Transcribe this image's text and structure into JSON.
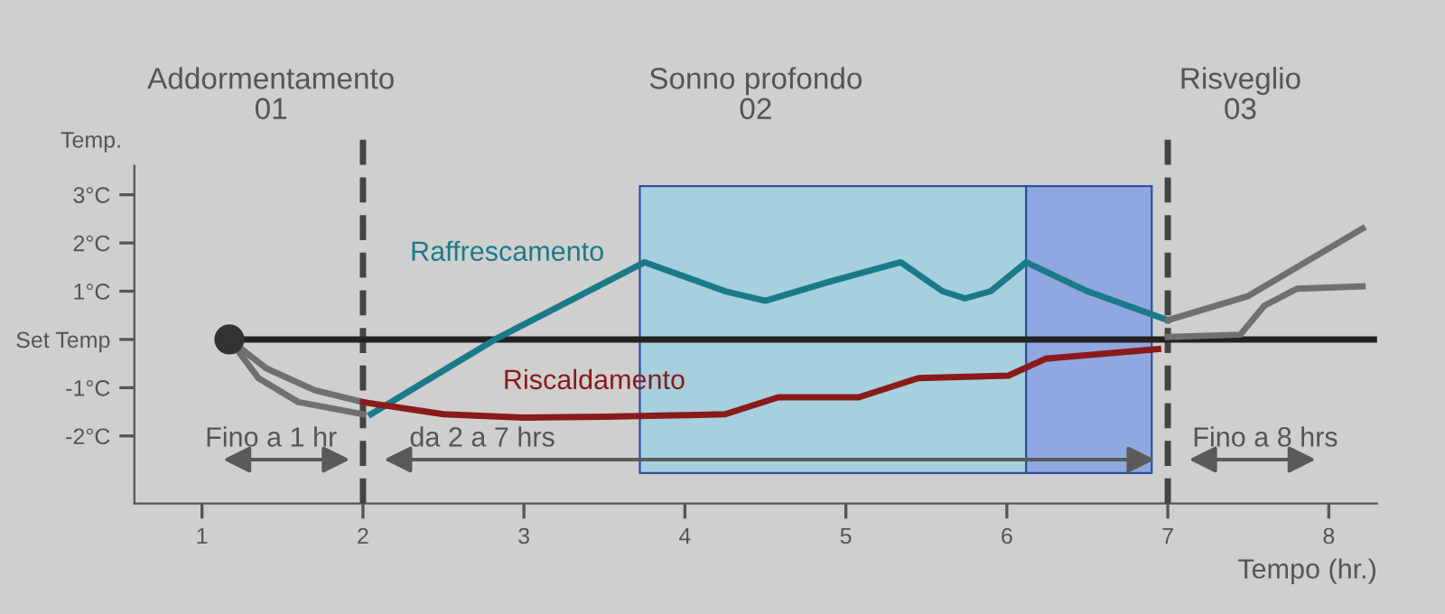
{
  "chart_data": {
    "type": "line",
    "ylabel": "Temp.",
    "xlabel": "Tempo (hr.)",
    "xlim": [
      0.58,
      8.3
    ],
    "xticks": [
      1,
      2,
      3,
      4,
      5,
      6,
      7,
      8
    ],
    "ylim": [
      -3.4,
      3.6
    ],
    "yticks": [
      {
        "value": -2,
        "label": "-2°C"
      },
      {
        "value": -1,
        "label": "-1°C"
      },
      {
        "value": 0,
        "label": "Set Temp"
      },
      {
        "value": 1,
        "label": "1°C"
      },
      {
        "value": 2,
        "label": "2°C"
      },
      {
        "value": 3,
        "label": "3°C"
      }
    ],
    "grid": false,
    "legend": false,
    "series": [
      {
        "color": "#222222",
        "x": [
          1.17,
          8.3
        ],
        "values": [
          0,
          0
        ]
      },
      {
        "color": "#707070",
        "x": [
          1.17,
          1.4,
          1.7,
          2.0
        ],
        "values": [
          0,
          -0.6,
          -1.05,
          -1.3
        ]
      },
      {
        "color": "#707070",
        "x": [
          1.17,
          1.35,
          1.6,
          2.0
        ],
        "values": [
          0,
          -0.8,
          -1.3,
          -1.55
        ]
      },
      {
        "name": "Raffrescamento",
        "color": "#1a7a8a",
        "x": [
          2.05,
          2.82,
          3.75,
          4.25,
          4.5,
          4.9,
          5.34,
          5.6,
          5.74,
          5.9,
          6.12,
          6.5,
          7.0
        ],
        "values": [
          -1.55,
          0,
          1.6,
          1.0,
          0.8,
          1.2,
          1.6,
          1.0,
          0.85,
          1.0,
          1.6,
          1.0,
          0.4
        ]
      },
      {
        "name": "Riscaldamento",
        "color": "#8b1a1a",
        "x": [
          2.0,
          2.5,
          3.0,
          3.5,
          4.0,
          4.25,
          4.58,
          5.08,
          5.45,
          6.01,
          6.24,
          6.94
        ],
        "values": [
          -1.3,
          -1.55,
          -1.62,
          -1.6,
          -1.57,
          -1.55,
          -1.2,
          -1.2,
          -0.8,
          -0.75,
          -0.4,
          -0.2
        ]
      },
      {
        "color": "#707070",
        "x": [
          7.0,
          7.5,
          8.21
        ],
        "values": [
          0.4,
          0.9,
          2.3
        ]
      },
      {
        "color": "#707070",
        "x": [
          7.0,
          7.45,
          7.6,
          7.8,
          8.21
        ],
        "values": [
          0.05,
          0.1,
          0.7,
          1.05,
          1.1
        ]
      },
      {
        "type": "scatter",
        "color": "#333333",
        "x": [
          1.17
        ],
        "values": [
          0
        ]
      }
    ],
    "bands": [
      {
        "axis": "x",
        "from": 3.72,
        "to": 6.12,
        "color": "#a6d0dd"
      },
      {
        "axis": "x",
        "from": 6.12,
        "to": 6.9,
        "color": "#90a8e0"
      }
    ],
    "ref_lines": [
      {
        "axis": "x",
        "value": 2,
        "color": "#444444",
        "line_style": "dashed"
      },
      {
        "axis": "x",
        "value": 7,
        "color": "#444444",
        "line_style": "dashed"
      }
    ],
    "annotations": [
      "Addormentamento\n01",
      "Sonno profondo\n02",
      "Risveglio\n03",
      "Fino a 1 hr",
      "da 2 a 7 hrs",
      "Fino a 8 hrs"
    ]
  }
}
